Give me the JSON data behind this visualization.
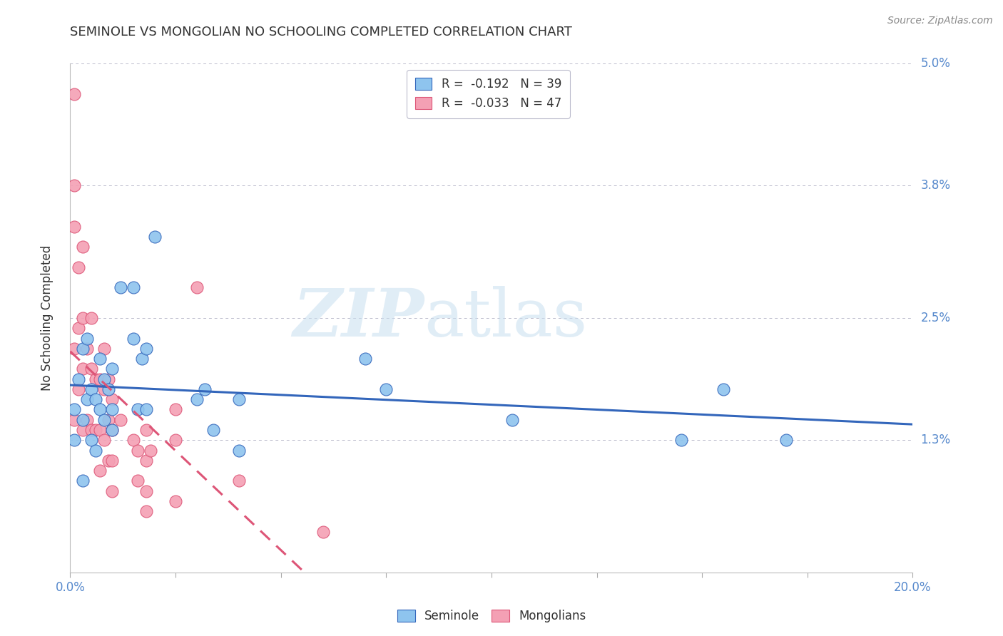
{
  "title": "SEMINOLE VS MONGOLIAN NO SCHOOLING COMPLETED CORRELATION CHART",
  "source": "Source: ZipAtlas.com",
  "ylabel": "No Schooling Completed",
  "watermark_zip": "ZIP",
  "watermark_atlas": "atlas",
  "xlim": [
    0.0,
    0.2
  ],
  "ylim": [
    0.0,
    0.05
  ],
  "ytick_vals": [
    0.0,
    0.013,
    0.025,
    0.038,
    0.05
  ],
  "ytick_labels": [
    "",
    "1.3%",
    "2.5%",
    "3.8%",
    "5.0%"
  ],
  "xtick_vals": [
    0.0,
    0.025,
    0.05,
    0.075,
    0.1,
    0.125,
    0.15,
    0.175,
    0.2
  ],
  "legend_seminole": "R =  -0.192   N = 39",
  "legend_mongolian": "R =  -0.033   N = 47",
  "seminole_color": "#8ec4ee",
  "mongolian_color": "#f4a0b4",
  "trend_seminole_color": "#3366bb",
  "trend_mongolian_color": "#dd5577",
  "background_color": "#ffffff",
  "axis_label_color": "#5588cc",
  "title_color": "#333333",
  "source_color": "#888888",
  "seminole_x": [
    0.001,
    0.001,
    0.002,
    0.003,
    0.003,
    0.004,
    0.004,
    0.005,
    0.005,
    0.006,
    0.006,
    0.007,
    0.007,
    0.008,
    0.008,
    0.009,
    0.01,
    0.01,
    0.01,
    0.012,
    0.015,
    0.015,
    0.016,
    0.017,
    0.018,
    0.018,
    0.02,
    0.03,
    0.032,
    0.034,
    0.04,
    0.04,
    0.07,
    0.075,
    0.105,
    0.145,
    0.155,
    0.17,
    0.003
  ],
  "seminole_y": [
    0.016,
    0.013,
    0.019,
    0.022,
    0.015,
    0.023,
    0.017,
    0.018,
    0.013,
    0.017,
    0.012,
    0.021,
    0.016,
    0.019,
    0.015,
    0.018,
    0.02,
    0.016,
    0.014,
    0.028,
    0.028,
    0.023,
    0.016,
    0.021,
    0.022,
    0.016,
    0.033,
    0.017,
    0.018,
    0.014,
    0.017,
    0.012,
    0.021,
    0.018,
    0.015,
    0.013,
    0.018,
    0.013,
    0.009
  ],
  "mongolian_x": [
    0.001,
    0.001,
    0.001,
    0.001,
    0.001,
    0.002,
    0.002,
    0.002,
    0.003,
    0.003,
    0.003,
    0.003,
    0.004,
    0.004,
    0.005,
    0.005,
    0.005,
    0.006,
    0.006,
    0.007,
    0.007,
    0.007,
    0.008,
    0.008,
    0.008,
    0.009,
    0.009,
    0.009,
    0.01,
    0.01,
    0.01,
    0.01,
    0.012,
    0.015,
    0.016,
    0.016,
    0.018,
    0.018,
    0.018,
    0.018,
    0.019,
    0.025,
    0.025,
    0.025,
    0.03,
    0.04,
    0.06
  ],
  "mongolian_y": [
    0.047,
    0.038,
    0.034,
    0.022,
    0.015,
    0.03,
    0.024,
    0.018,
    0.032,
    0.025,
    0.02,
    0.014,
    0.022,
    0.015,
    0.025,
    0.02,
    0.014,
    0.019,
    0.014,
    0.019,
    0.014,
    0.01,
    0.022,
    0.018,
    0.013,
    0.019,
    0.015,
    0.011,
    0.017,
    0.014,
    0.011,
    0.008,
    0.015,
    0.013,
    0.012,
    0.009,
    0.014,
    0.011,
    0.008,
    0.006,
    0.012,
    0.016,
    0.013,
    0.007,
    0.028,
    0.009,
    0.004
  ],
  "seminole_trend_x": [
    0.0,
    0.2
  ],
  "mongolian_trend_x": [
    0.0,
    0.175
  ],
  "seminole_R": -0.192,
  "mongolian_R": -0.033
}
